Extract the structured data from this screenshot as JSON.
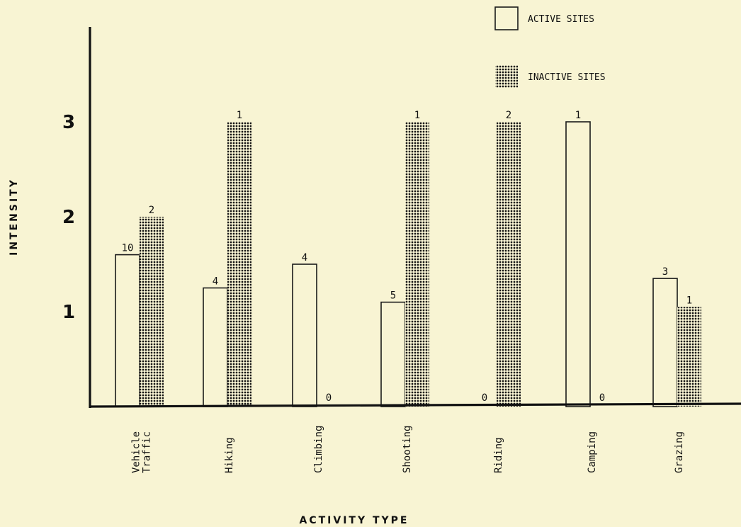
{
  "chart_data": {
    "type": "bar",
    "xlabel": "ACTIVITY TYPE",
    "ylabel": "INTENSITY",
    "ylim": [
      0,
      4
    ],
    "yticks": [
      "1",
      "2",
      "3"
    ],
    "categories": [
      [
        "Vehicle",
        "Traffic"
      ],
      [
        "Hiking"
      ],
      [
        "Climbing"
      ],
      [
        "Shooting"
      ],
      [
        "Riding"
      ],
      [
        "Camping"
      ],
      [
        "Grazing"
      ]
    ],
    "series": [
      {
        "name": "ACTIVE SITES",
        "style": "open",
        "values": [
          1.6,
          1.25,
          1.5,
          1.1,
          0,
          3.0,
          1.35
        ],
        "site_counts": [
          "10",
          "4",
          "4",
          "5",
          "0",
          "1",
          "3"
        ]
      },
      {
        "name": "INACTIVE SITES",
        "style": "stippled",
        "values": [
          2.0,
          3.0,
          0,
          3.0,
          3.0,
          0,
          1.05
        ],
        "site_counts": [
          "2",
          "1",
          "0",
          "1",
          "2",
          "0",
          "1"
        ]
      }
    ],
    "legend_position": "top-right",
    "grid": false
  }
}
